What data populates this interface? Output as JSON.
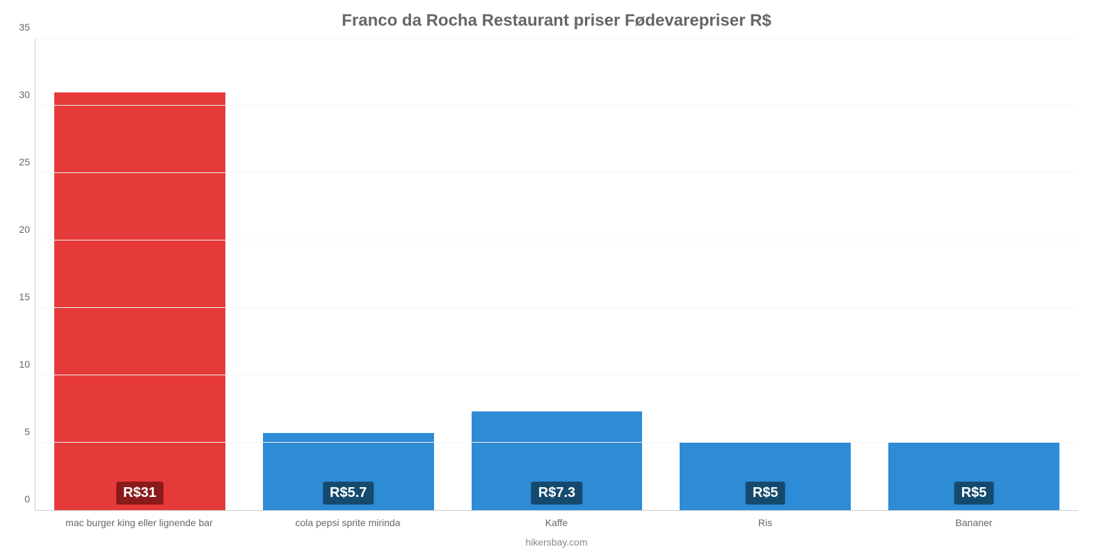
{
  "chart": {
    "type": "bar",
    "title": "Franco da Rocha Restaurant priser Fødevarepriser R$",
    "title_fontsize": 24,
    "title_color": "#666666",
    "attribution": "hikersbay.com",
    "attribution_color": "#888888",
    "background_color": "#ffffff",
    "axis_color": "#cccccc",
    "grid_color": "#f5f5f5",
    "xlabel_color": "#666666",
    "xlabel_fontsize": 14,
    "ytick_color": "#666666",
    "ytick_fontsize": 14,
    "ylim": [
      0,
      35
    ],
    "ytick_step": 5,
    "bar_width_ratio": 0.82,
    "bar_label_fontsize": 20,
    "categories": [
      "mac burger king eller lignende bar",
      "cola pepsi sprite mirinda",
      "Kaffe",
      "Ris",
      "Bananer"
    ],
    "values": [
      31,
      5.7,
      7.3,
      5,
      5
    ],
    "value_labels": [
      "R$31",
      "R$5.7",
      "R$7.3",
      "R$5",
      "R$5"
    ],
    "bar_colors": [
      "#e63939",
      "#2e8bd6",
      "#2e8bd6",
      "#2e8bd6",
      "#2e8bd6"
    ],
    "bar_label_bg": [
      "#8b1a1a",
      "#154a6f",
      "#154a6f",
      "#154a6f",
      "#154a6f"
    ],
    "bar_label_text_color": "#ffffff"
  }
}
